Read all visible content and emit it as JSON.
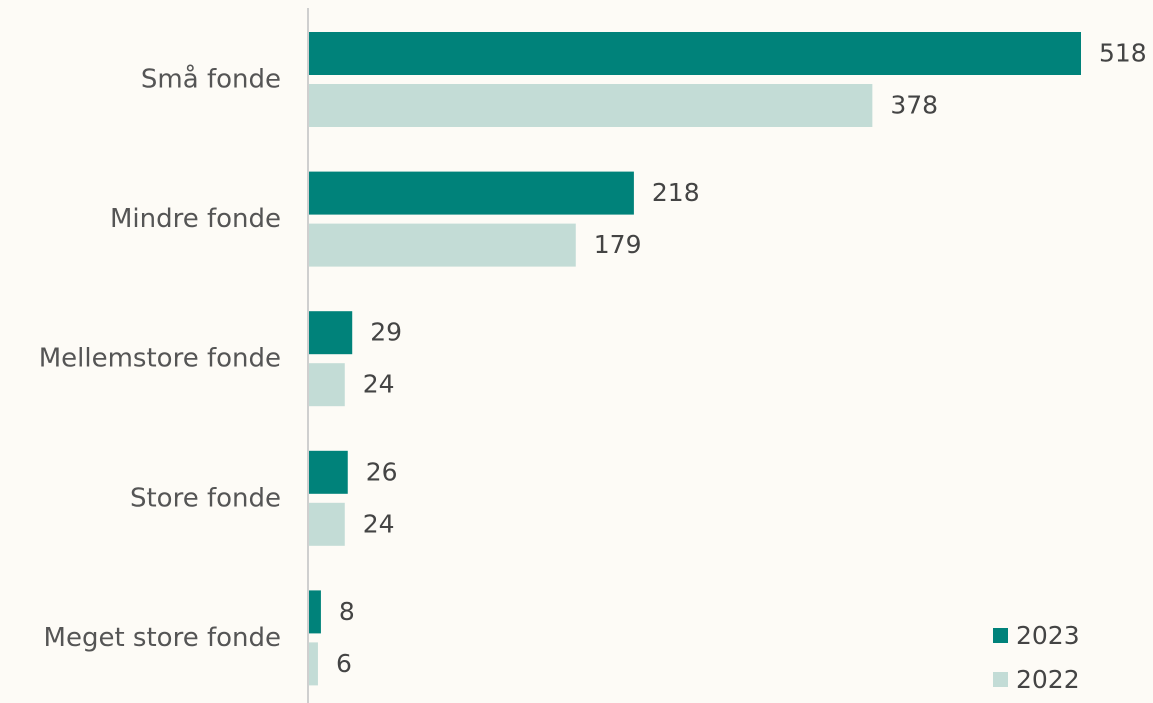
{
  "chart_data": {
    "type": "barh",
    "categories": [
      "Små fonde",
      "Mindre fonde",
      "Mellemstore fonde",
      "Store fonde",
      "Meget store fonde"
    ],
    "series": [
      {
        "name": "2023",
        "color": "#00827a",
        "values": [
          518,
          218,
          29,
          26,
          8
        ]
      },
      {
        "name": "2022",
        "color": "#c3dcd6",
        "values": [
          378,
          179,
          24,
          24,
          6
        ]
      }
    ],
    "legend": "lower right"
  }
}
